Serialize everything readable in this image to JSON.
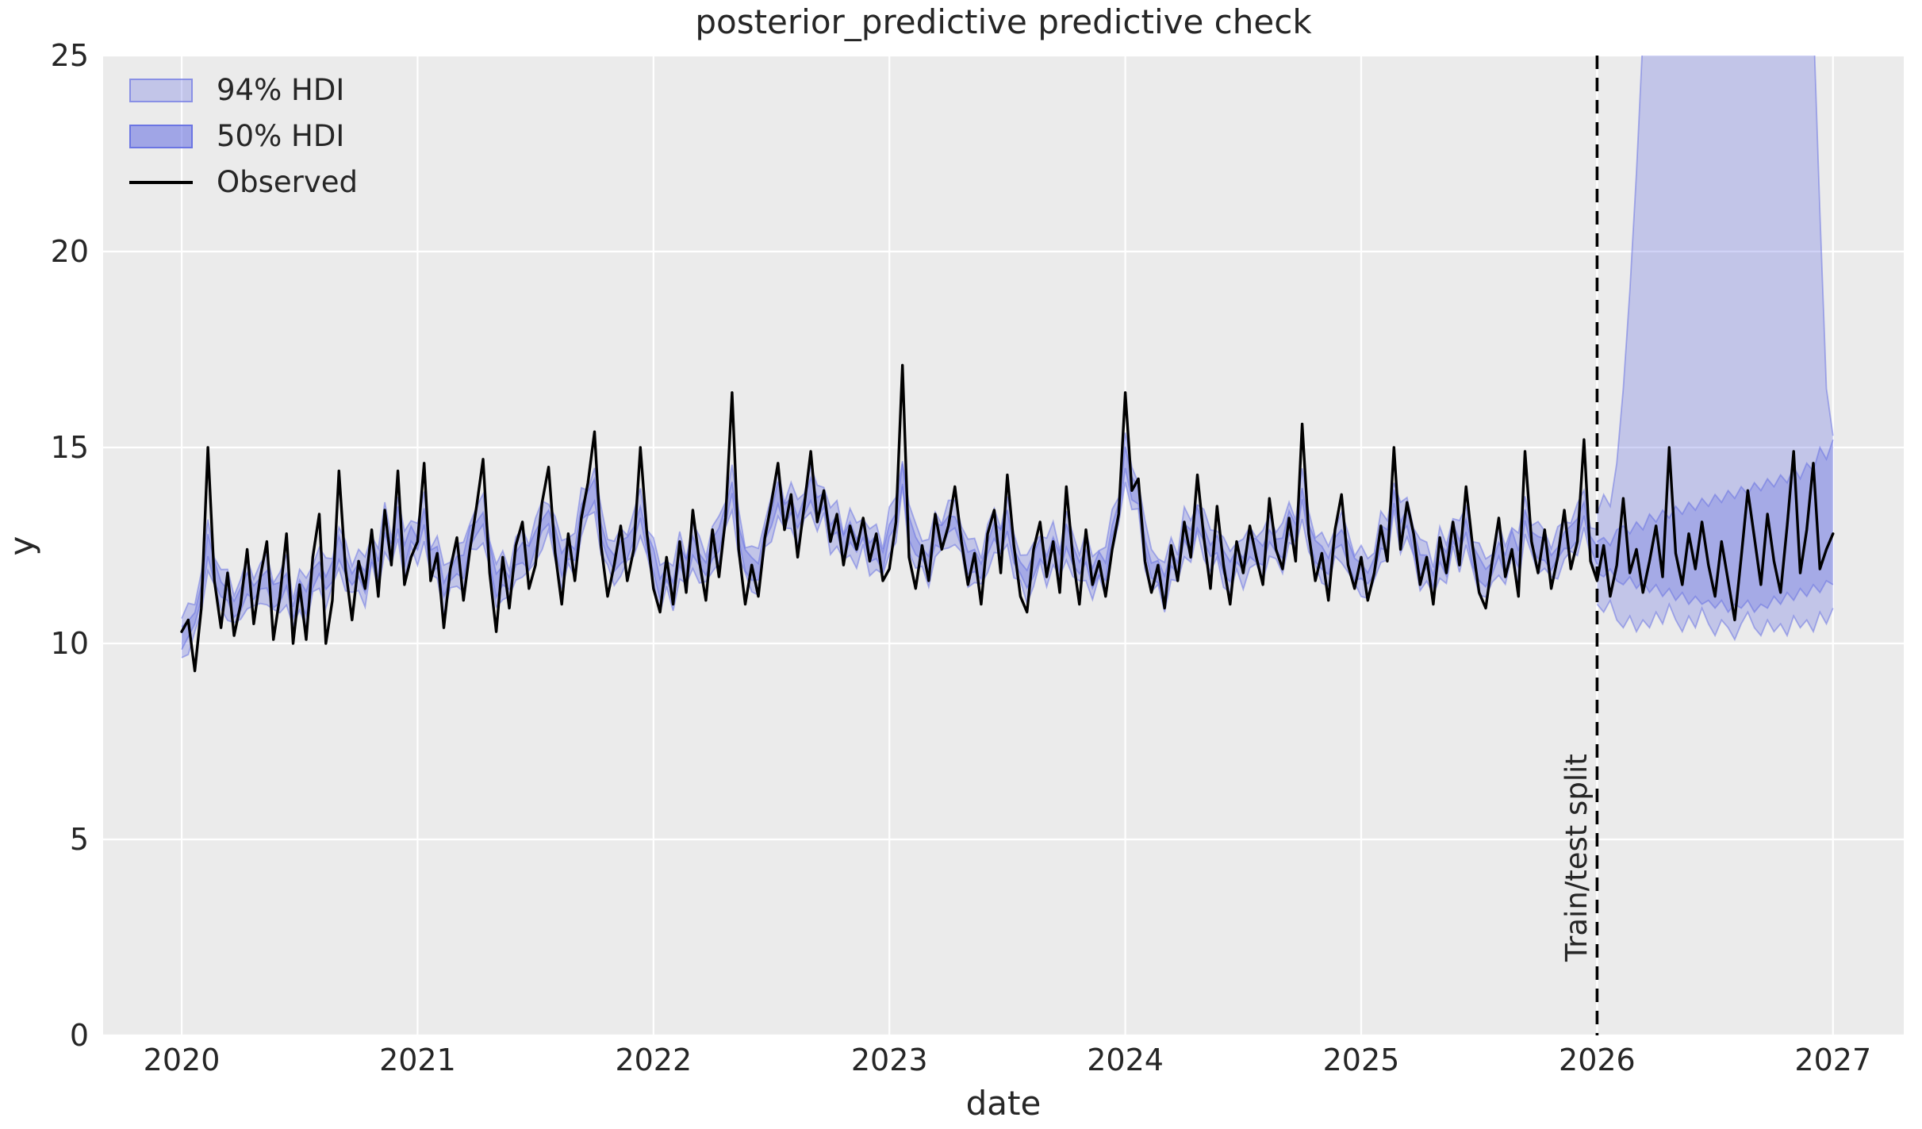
{
  "figure": {
    "title": "posterior_predictive predictive check",
    "colors": {
      "axes_background": "#ebebeb",
      "grid": "#ffffff",
      "text": "#262626",
      "observed": "#000000",
      "hdi_base_rgb": "98,108,226",
      "hdi94_fill_alpha": 0.3,
      "hdi50_fill_alpha": 0.55,
      "split_line": "#000000"
    }
  },
  "chart_data": {
    "type": "line",
    "title": "posterior_predictive predictive check",
    "xlabel": "date",
    "ylabel": "y",
    "legend": [
      "94% HDI",
      "50% HDI",
      "Observed"
    ],
    "legend_position": "upper left",
    "grid": true,
    "xlim": [
      2019.667,
      2027.3
    ],
    "ylim": [
      0,
      25
    ],
    "xticks": [
      2020,
      2021,
      2022,
      2023,
      2024,
      2025,
      2026,
      2027
    ],
    "yticks": [
      0,
      5,
      10,
      15,
      20,
      25
    ],
    "split": {
      "t": 2026.0,
      "label": "Train/test split"
    },
    "observed": {
      "x_start": 2020.0,
      "x_step_years": 0.0277778,
      "values": [
        10.3,
        10.6,
        9.3,
        10.9,
        15.0,
        11.6,
        10.4,
        11.8,
        10.2,
        11.0,
        12.4,
        10.5,
        11.7,
        12.6,
        10.1,
        11.2,
        12.8,
        10.0,
        11.5,
        10.1,
        12.2,
        13.3,
        10.0,
        11.1,
        14.4,
        11.9,
        10.6,
        12.1,
        11.4,
        12.9,
        11.2,
        13.4,
        12.0,
        14.4,
        11.5,
        12.2,
        12.6,
        14.6,
        11.6,
        12.3,
        10.4,
        11.9,
        12.7,
        11.1,
        12.4,
        13.5,
        14.7,
        11.8,
        10.3,
        12.2,
        10.9,
        12.5,
        13.1,
        11.4,
        12.0,
        13.6,
        14.5,
        12.3,
        11.0,
        12.8,
        11.6,
        13.2,
        14.1,
        15.4,
        12.5,
        11.2,
        12.0,
        13.0,
        11.6,
        12.4,
        15.0,
        12.8,
        11.4,
        10.8,
        12.2,
        11.0,
        12.6,
        11.3,
        13.4,
        12.1,
        11.1,
        12.9,
        11.7,
        13.2,
        16.4,
        12.4,
        11.0,
        12.0,
        11.2,
        12.7,
        13.6,
        14.6,
        12.9,
        13.8,
        12.2,
        13.5,
        14.9,
        13.1,
        13.9,
        12.6,
        13.3,
        12.0,
        13.0,
        12.4,
        13.2,
        12.1,
        12.8,
        11.6,
        11.9,
        13.1,
        17.1,
        12.2,
        11.4,
        12.5,
        11.6,
        13.3,
        12.4,
        13.0,
        14.0,
        12.6,
        11.5,
        12.3,
        11.0,
        12.8,
        13.4,
        11.8,
        14.3,
        12.5,
        11.2,
        10.8,
        12.4,
        13.1,
        11.7,
        12.6,
        11.3,
        14.0,
        12.2,
        11.0,
        12.9,
        11.5,
        12.1,
        11.2,
        12.4,
        13.3,
        16.4,
        13.9,
        14.2,
        12.1,
        11.3,
        12.0,
        10.9,
        12.5,
        11.6,
        13.1,
        12.2,
        14.3,
        12.7,
        11.4,
        13.5,
        12.0,
        11.0,
        12.6,
        11.8,
        13.0,
        12.2,
        11.5,
        13.7,
        12.4,
        11.9,
        13.2,
        12.1,
        15.6,
        12.8,
        11.6,
        12.3,
        11.1,
        12.9,
        13.8,
        12.0,
        11.4,
        12.2,
        11.1,
        11.8,
        13.0,
        12.1,
        15.0,
        12.4,
        13.6,
        12.8,
        11.5,
        12.2,
        11.0,
        12.7,
        11.8,
        13.1,
        12.0,
        14.0,
        12.5,
        11.3,
        10.9,
        12.1,
        13.2,
        11.7,
        12.4,
        11.2,
        14.9,
        12.6,
        11.8,
        12.9,
        11.4,
        12.2,
        13.4,
        11.9,
        12.6,
        15.2,
        12.1,
        11.6,
        12.5,
        11.2,
        12.0,
        13.7,
        11.8,
        12.4,
        11.3,
        12.1,
        13.0,
        11.7,
        15.0,
        12.3,
        11.5,
        12.8,
        11.9,
        13.1,
        12.0,
        11.2,
        12.6,
        11.6,
        10.6,
        12.2,
        13.9,
        12.7,
        11.5,
        13.3,
        12.1,
        11.3,
        13.0,
        14.9,
        11.8,
        12.9,
        14.6,
        11.9,
        12.4,
        12.8
      ]
    },
    "hdi_train": {
      "end_t": 2026.0,
      "hdi94_halfwidth": 0.5,
      "hdi50_halfwidth": 0.22,
      "note": "bands closely track the observed series before the split"
    },
    "hdi_test": {
      "x_start": 2026.0,
      "x_step_years": 0.0277778,
      "upper94": [
        13.3,
        13.8,
        13.5,
        14.6,
        16.5,
        19.0,
        22.0,
        25.5,
        28,
        28,
        28,
        28,
        28,
        28,
        28,
        28,
        28,
        28,
        28,
        28,
        28,
        28,
        28,
        28,
        28,
        28,
        28,
        28,
        28,
        28,
        28,
        28,
        28,
        26.0,
        21.0,
        16.5,
        15.3
      ],
      "lower94": [
        11.0,
        10.8,
        11.1,
        10.6,
        10.4,
        10.7,
        10.3,
        10.6,
        10.4,
        10.8,
        10.5,
        11.0,
        10.6,
        10.3,
        10.7,
        10.4,
        10.9,
        10.5,
        10.2,
        10.6,
        10.4,
        10.1,
        10.5,
        10.8,
        10.4,
        10.2,
        10.6,
        10.3,
        10.5,
        10.2,
        10.7,
        10.4,
        10.6,
        10.3,
        10.8,
        10.5,
        10.9
      ],
      "upper50": [
        12.6,
        12.7,
        12.5,
        12.9,
        13.0,
        12.8,
        13.1,
        12.9,
        13.3,
        13.1,
        13.4,
        13.2,
        13.5,
        13.3,
        13.6,
        13.4,
        13.7,
        13.5,
        13.8,
        13.6,
        13.9,
        13.7,
        14.0,
        13.8,
        14.1,
        13.9,
        14.2,
        14.0,
        14.3,
        14.1,
        14.5,
        14.2,
        14.6,
        14.4,
        15.0,
        14.7,
        15.2
      ],
      "lower50": [
        11.8,
        11.7,
        11.9,
        11.6,
        11.5,
        11.7,
        11.4,
        11.6,
        11.3,
        11.5,
        11.2,
        11.4,
        11.1,
        11.3,
        11.0,
        11.2,
        11.0,
        11.1,
        10.9,
        11.1,
        10.8,
        11.0,
        10.9,
        11.1,
        10.8,
        11.0,
        10.9,
        11.2,
        11.0,
        11.3,
        11.1,
        11.4,
        11.2,
        11.5,
        11.3,
        11.6,
        11.5
      ]
    }
  }
}
